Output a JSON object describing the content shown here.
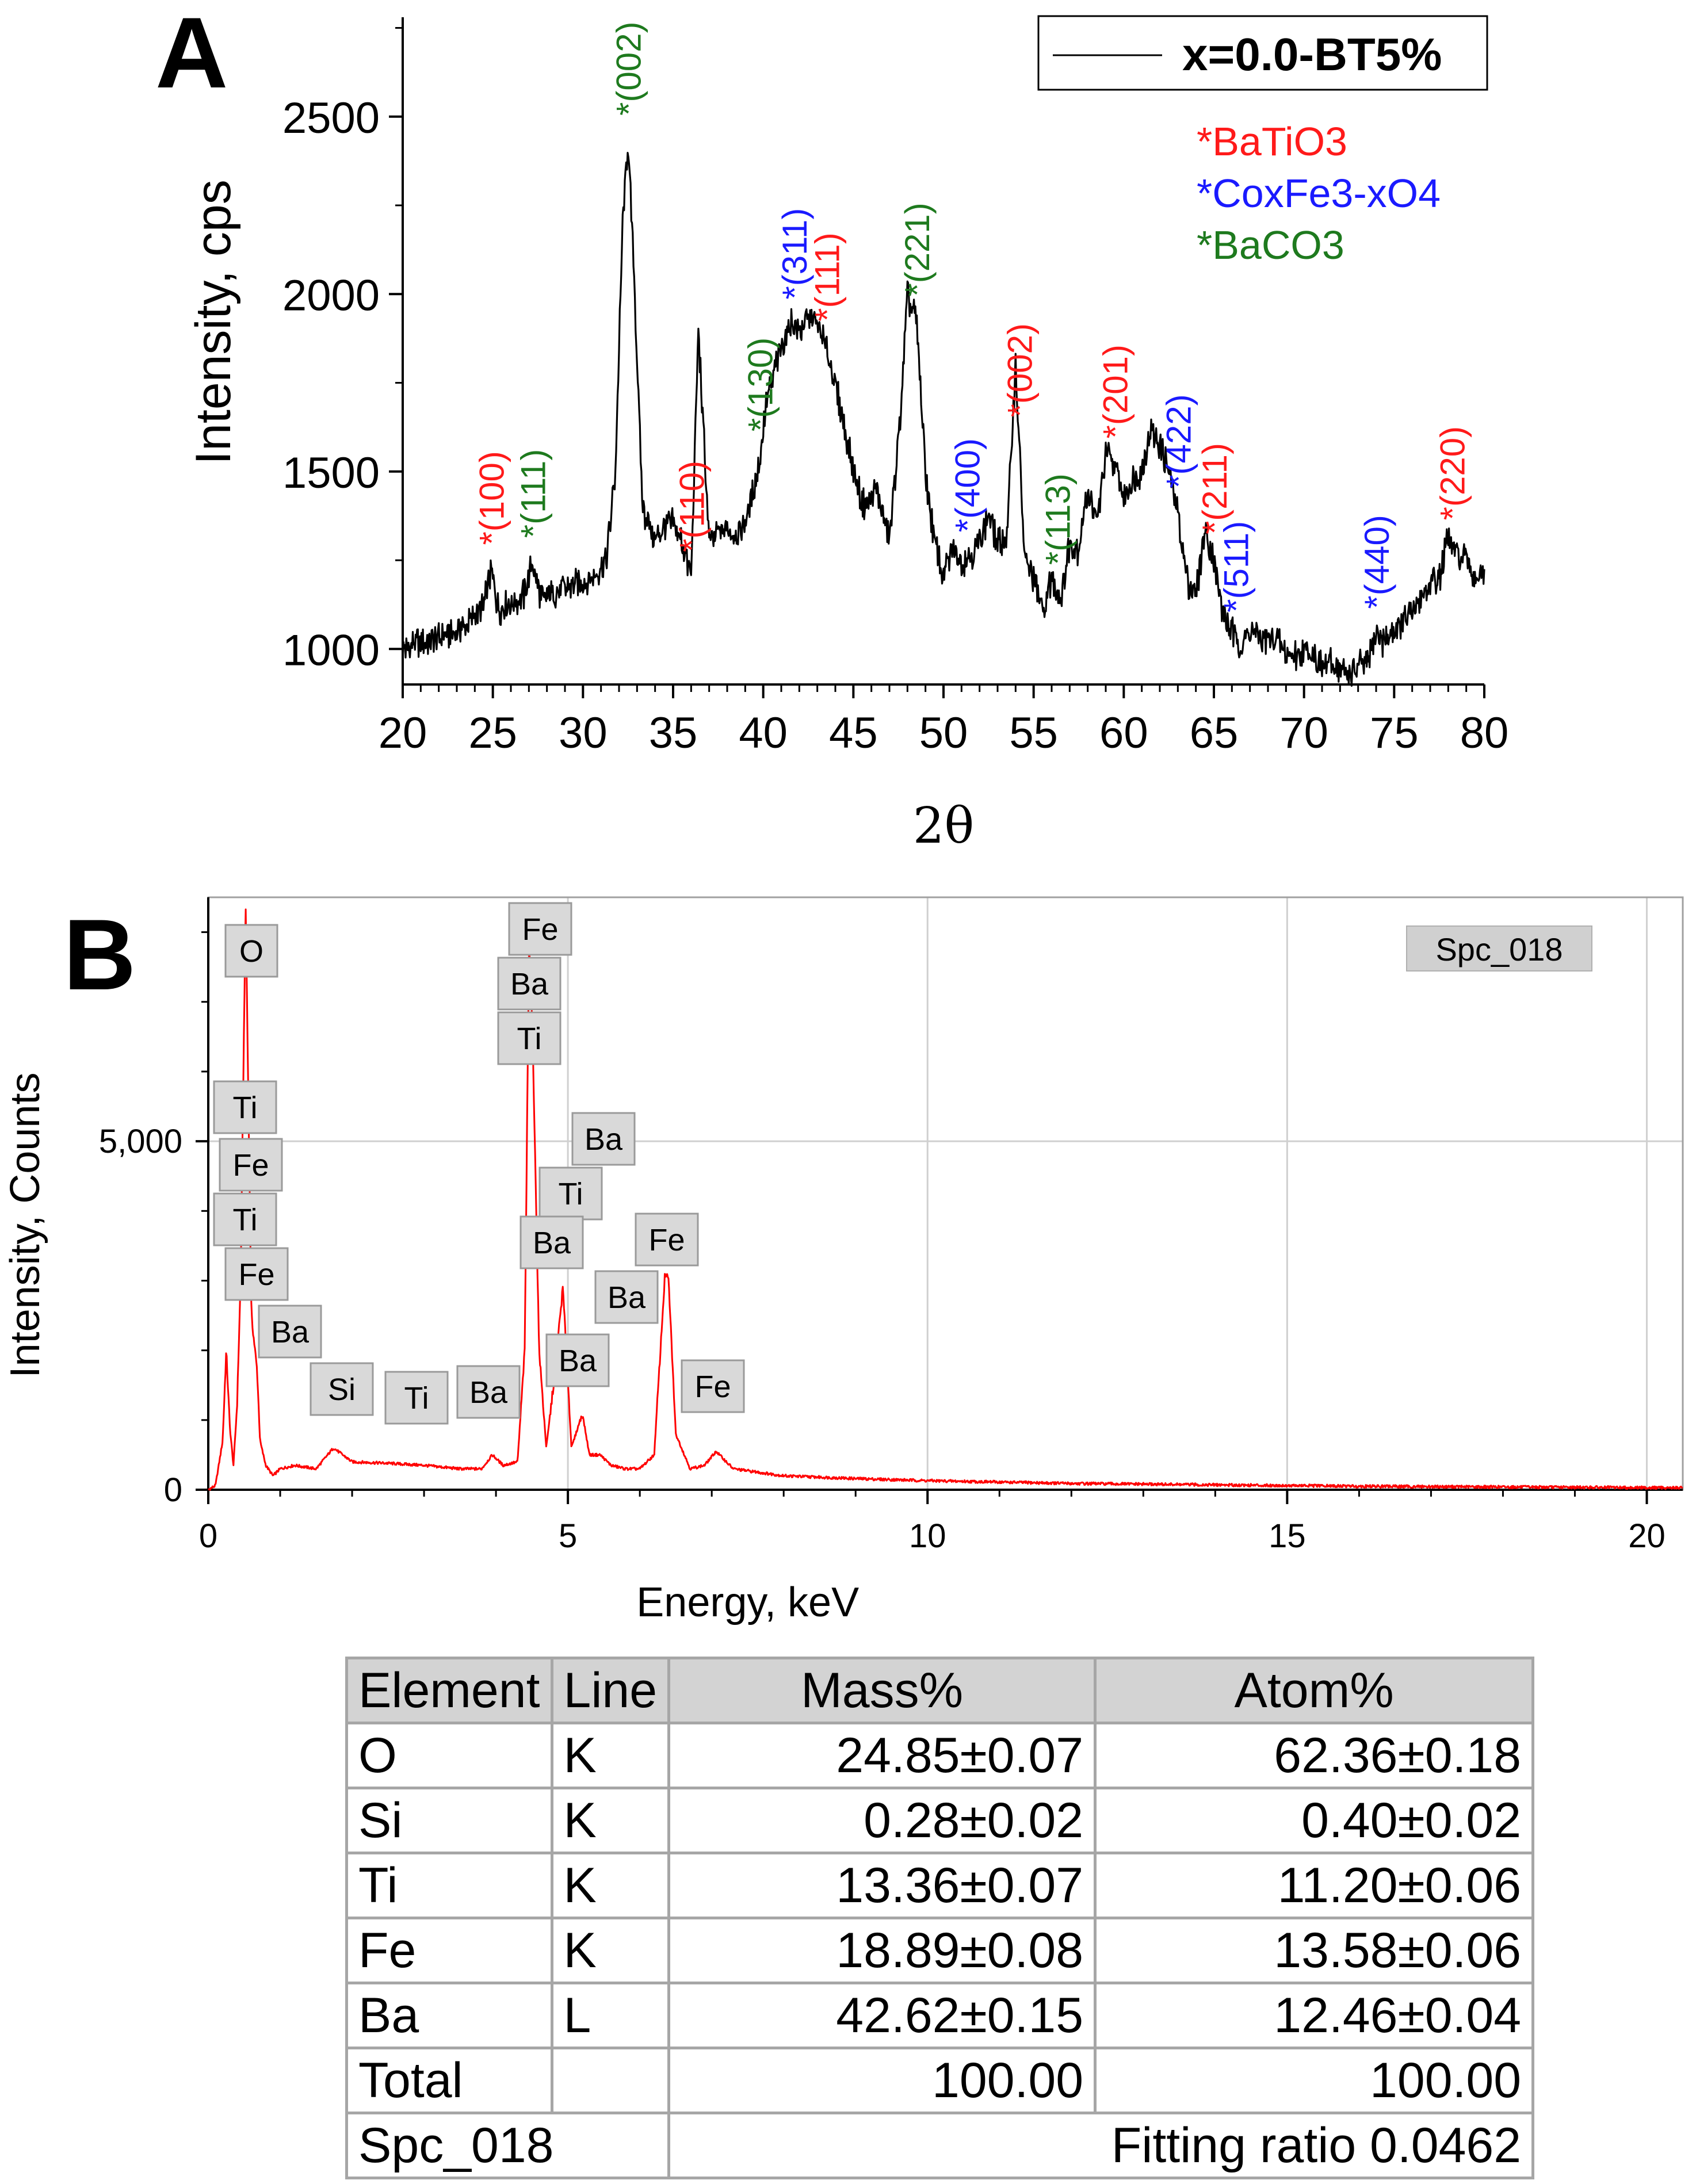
{
  "panels": [
    {
      "letter": "A"
    },
    {
      "letter": "B"
    }
  ],
  "chart_data": [
    {
      "type": "line",
      "title": "",
      "xlabel": "2θ",
      "ylabel": "Intensity, cps",
      "xlim": [
        20,
        80
      ],
      "ylim": [
        900,
        2780
      ],
      "xticks": [
        20,
        25,
        30,
        35,
        40,
        45,
        50,
        55,
        60,
        65,
        70,
        75,
        80
      ],
      "yticks": [
        1000,
        1500,
        2000,
        2500
      ],
      "legend": {
        "position": "top-right",
        "entries": [
          "x=0.0-BT5%"
        ]
      },
      "phase_legend": [
        {
          "label": "*BaTiO3",
          "color": "#ff1a1a"
        },
        {
          "label": "*CoxFe3-xO4",
          "color": "#1a1aff"
        },
        {
          "label": "*BaCO3",
          "color": "#1e7a1e"
        }
      ],
      "series": [
        {
          "name": "x=0.0-BT5%",
          "color": "#000000",
          "x": [
            20,
            21,
            22,
            23,
            24,
            24.5,
            24.9,
            25.3,
            26,
            26.7,
            27.2,
            27.7,
            28.5,
            29.5,
            30.5,
            31.3,
            31.8,
            32.2,
            32.5,
            32.8,
            33.3,
            34,
            34.5,
            35,
            35.5,
            36,
            36.4,
            37,
            37.5,
            38,
            38.5,
            39,
            39.7,
            40.2,
            40.8,
            41.5,
            42,
            42.8,
            43.5,
            44.2,
            45,
            45.6,
            46.3,
            47,
            47.6,
            48,
            48.5,
            49,
            49.5,
            50,
            50.5,
            51,
            51.5,
            52,
            52.5,
            53,
            53.5,
            54,
            54.5,
            55,
            55.5,
            56,
            56.5,
            57,
            57.5,
            58,
            58.5,
            59,
            59.5,
            60,
            60.5,
            61,
            61.5,
            62,
            62.5,
            63,
            63.5,
            64,
            64.5,
            65,
            65.5,
            66,
            66.5,
            67,
            67.5,
            68,
            68.5,
            69,
            69.5,
            70,
            70.5,
            71,
            71.5,
            72,
            72.5,
            73,
            73.5,
            74,
            74.5,
            75,
            75.5,
            76,
            76.5,
            77,
            77.5,
            78,
            78.5,
            79,
            79.5,
            80
          ],
          "y": [
            1000,
            1020,
            1030,
            1050,
            1090,
            1120,
            1220,
            1110,
            1130,
            1150,
            1240,
            1140,
            1160,
            1180,
            1200,
            1250,
            1500,
            2200,
            2430,
            2100,
            1400,
            1300,
            1350,
            1350,
            1300,
            1200,
            1900,
            1300,
            1330,
            1340,
            1320,
            1350,
            1500,
            1700,
            1820,
            1920,
            1900,
            1940,
            1850,
            1700,
            1500,
            1400,
            1450,
            1300,
            1650,
            2000,
            1920,
            1500,
            1300,
            1200,
            1280,
            1250,
            1260,
            1300,
            1380,
            1300,
            1300,
            1800,
            1250,
            1200,
            1100,
            1200,
            1140,
            1300,
            1280,
            1450,
            1350,
            1550,
            1520,
            1420,
            1480,
            1500,
            1620,
            1580,
            1500,
            1380,
            1200,
            1150,
            1340,
            1250,
            1100,
            1050,
            1000,
            1050,
            1040,
            1020,
            1030,
            990,
            980,
            1000,
            990,
            950,
            960,
            940,
            930,
            950,
            960,
            1040,
            1020,
            1050,
            1080,
            1100,
            1150,
            1180,
            1200,
            1310,
            1260,
            1250,
            1200,
            1210
          ]
        }
      ],
      "peak_labels": [
        {
          "x": 24.9,
          "label": "*(100)",
          "phase": "BaTiO3",
          "color": "#ff1a1a"
        },
        {
          "x": 27.2,
          "label": "*(111)",
          "phase": "BaCO3",
          "color": "#1e7a1e"
        },
        {
          "x": 32.5,
          "label": "*(002)",
          "phase": "BaCO3",
          "color": "#1e7a1e"
        },
        {
          "x": 36.0,
          "label": "*(110)",
          "phase": "BaTiO3",
          "color": "#ff1a1a"
        },
        {
          "x": 39.8,
          "label": "*(130)",
          "phase": "BaCO3",
          "color": "#1e7a1e"
        },
        {
          "x": 41.7,
          "label": "*(311)",
          "phase": "CoxFe3-xO4",
          "color": "#1a1aff"
        },
        {
          "x": 43.5,
          "label": "*(111)",
          "phase": "BaTiO3",
          "color": "#ff1a1a"
        },
        {
          "x": 48.5,
          "label": "*(221)",
          "phase": "BaCO3",
          "color": "#1e7a1e"
        },
        {
          "x": 51.3,
          "label": "*(400)",
          "phase": "CoxFe3-xO4",
          "color": "#1a1aff"
        },
        {
          "x": 54.2,
          "label": "*(002)",
          "phase": "BaTiO3",
          "color": "#ff1a1a"
        },
        {
          "x": 56.3,
          "label": "*(113)",
          "phase": "BaCO3",
          "color": "#1e7a1e"
        },
        {
          "x": 59.5,
          "label": "*(201)",
          "phase": "BaTiO3",
          "color": "#ff1a1a"
        },
        {
          "x": 63.0,
          "label": "*(422)",
          "phase": "CoxFe3-xO4",
          "color": "#1a1aff"
        },
        {
          "x": 65.0,
          "label": "*(211)",
          "phase": "BaTiO3",
          "color": "#ff1a1a"
        },
        {
          "x": 66.2,
          "label": "*(511)",
          "phase": "CoxFe3-xO4",
          "color": "#1a1aff"
        },
        {
          "x": 74.0,
          "label": "*(440)",
          "phase": "CoxFe3-xO4",
          "color": "#1a1aff"
        },
        {
          "x": 78.2,
          "label": "*(220)",
          "phase": "BaTiO3",
          "color": "#ff1a1a"
        }
      ]
    },
    {
      "type": "line",
      "title": "",
      "xlabel": "Energy, keV",
      "ylabel": "Intensity, Counts",
      "xlim": [
        0,
        20.5
      ],
      "ylim": [
        0,
        8500
      ],
      "xticks": [
        0,
        5,
        10,
        15,
        20
      ],
      "yticks": [
        0,
        5000
      ],
      "ytick_labels": [
        "0",
        "5,000"
      ],
      "grid": true,
      "legend": {
        "position": "top-right",
        "entries": [
          "Spc_018"
        ]
      },
      "series": [
        {
          "name": "Spc_018",
          "color": "#ff0000",
          "x": [
            0,
            0.1,
            0.2,
            0.25,
            0.3,
            0.35,
            0.4,
            0.45,
            0.52,
            0.6,
            0.68,
            0.72,
            0.8,
            0.9,
            1.0,
            1.2,
            1.5,
            1.74,
            2.0,
            2.5,
            3.0,
            3.5,
            3.8,
            3.95,
            4.1,
            4.3,
            4.4,
            4.46,
            4.51,
            4.6,
            4.7,
            4.8,
            4.93,
            5.05,
            5.2,
            5.3,
            5.45,
            5.6,
            5.8,
            6.0,
            6.2,
            6.35,
            6.4,
            6.5,
            6.7,
            6.9,
            7.06,
            7.3,
            8,
            9,
            10,
            11,
            12,
            13,
            14,
            15,
            16,
            17,
            18,
            19,
            20,
            20.5
          ],
          "y": [
            0,
            60,
            700,
            2000,
            900,
            350,
            1200,
            3000,
            8400,
            2500,
            1700,
            700,
            350,
            200,
            300,
            350,
            300,
            600,
            400,
            380,
            350,
            300,
            300,
            500,
            350,
            400,
            2000,
            7900,
            6500,
            2000,
            600,
            1500,
            2900,
            600,
            1100,
            500,
            500,
            350,
            300,
            300,
            500,
            3100,
            3000,
            800,
            300,
            350,
            550,
            300,
            200,
            160,
            130,
            110,
            90,
            80,
            70,
            60,
            50,
            45,
            40,
            35,
            30,
            28
          ]
        }
      ],
      "peak_labels": [
        {
          "x": 0.52,
          "label": "O"
        },
        {
          "x": 4.51,
          "label": "Fe"
        },
        {
          "x": 4.51,
          "label": "Ba"
        },
        {
          "x": 4.51,
          "label": "Ti"
        },
        {
          "x": 0.45,
          "label": "Ti"
        },
        {
          "x": 0.7,
          "label": "Fe"
        },
        {
          "x": 0.45,
          "label": "Ti"
        },
        {
          "x": 0.7,
          "label": "Fe"
        },
        {
          "x": 0.9,
          "label": "Ba"
        },
        {
          "x": 1.74,
          "label": "Si"
        },
        {
          "x": 2.8,
          "label": "Ti"
        },
        {
          "x": 3.95,
          "label": "Ba"
        },
        {
          "x": 5.0,
          "label": "Ba"
        },
        {
          "x": 4.93,
          "label": "Ti"
        },
        {
          "x": 4.83,
          "label": "Ba"
        },
        {
          "x": 6.4,
          "label": "Fe"
        },
        {
          "x": 5.5,
          "label": "Ba"
        },
        {
          "x": 5.2,
          "label": "Ba"
        },
        {
          "x": 7.06,
          "label": "Fe"
        }
      ]
    }
  ],
  "table": {
    "headers": [
      "Element",
      "Line",
      "Mass%",
      "Atom%"
    ],
    "rows": [
      [
        "O",
        "K",
        "24.85±0.07",
        "62.36±0.18"
      ],
      [
        "Si",
        "K",
        "0.28±0.02",
        "0.40±0.02"
      ],
      [
        "Ti",
        "K",
        "13.36±0.07",
        "11.20±0.06"
      ],
      [
        "Fe",
        "K",
        "18.89±0.08",
        "13.58±0.06"
      ],
      [
        "Ba",
        "L",
        "42.62±0.15",
        "12.46±0.04"
      ],
      [
        "Total",
        "",
        "100.00",
        "100.00"
      ]
    ],
    "footer_left": "Spc_018",
    "footer_right": "Fitting ratio 0.0462"
  }
}
